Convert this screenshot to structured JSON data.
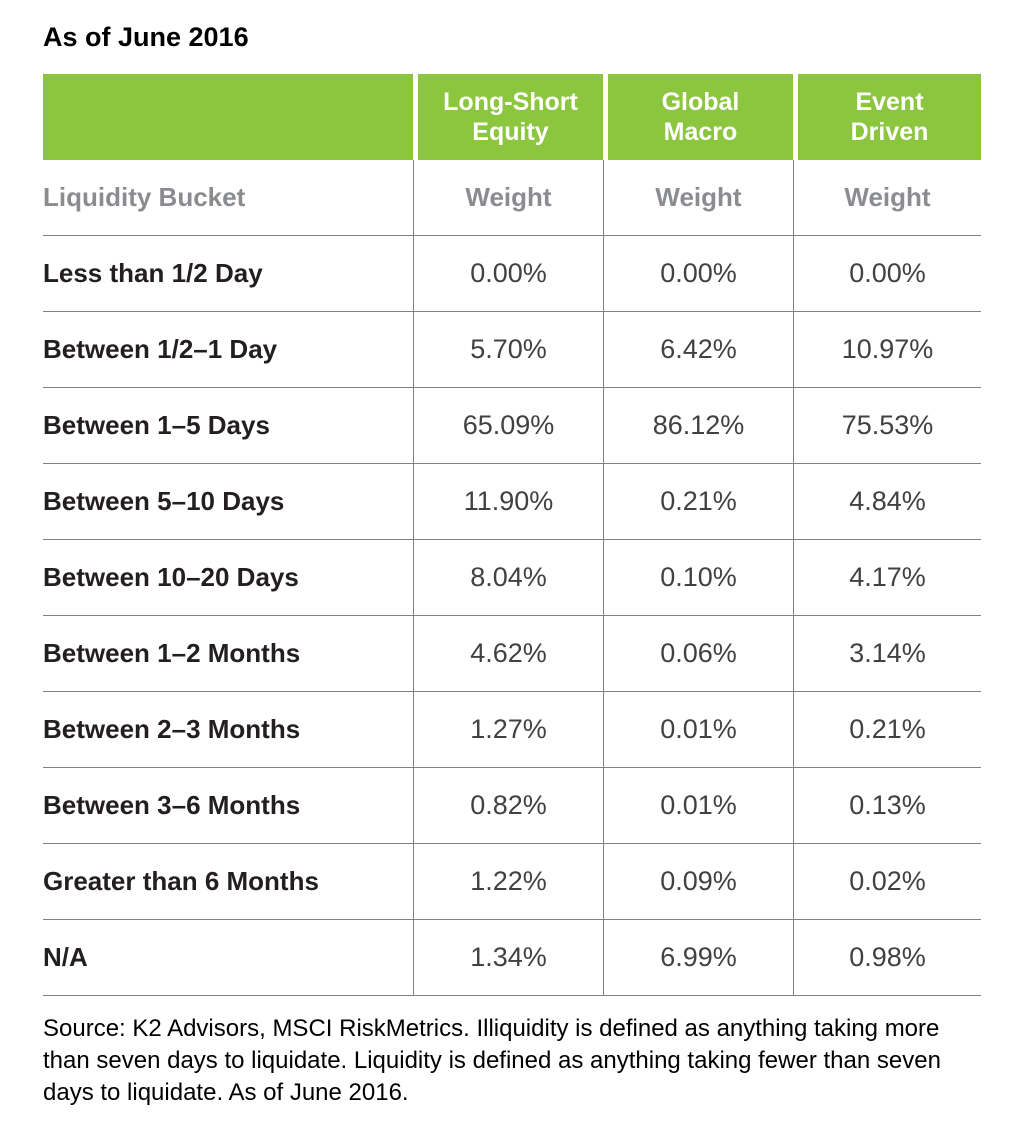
{
  "title": "As of June 2016",
  "table": {
    "bucket_header": "Liquidity Bucket",
    "columns": [
      {
        "line1": "Long-Short",
        "line2": "Equity",
        "weight": "Weight"
      },
      {
        "line1": "Global",
        "line2": "Macro",
        "weight": "Weight"
      },
      {
        "line1": "Event",
        "line2": "Driven",
        "weight": "Weight"
      }
    ],
    "rows": [
      {
        "bucket": "Less than 1/2 Day",
        "values": [
          "0.00%",
          "0.00%",
          "0.00%"
        ]
      },
      {
        "bucket": "Between 1/2–1 Day",
        "values": [
          "5.70%",
          "6.42%",
          "10.97%"
        ]
      },
      {
        "bucket": "Between 1–5 Days",
        "values": [
          "65.09%",
          "86.12%",
          "75.53%"
        ]
      },
      {
        "bucket": "Between 5–10 Days",
        "values": [
          "11.90%",
          "0.21%",
          "4.84%"
        ]
      },
      {
        "bucket": "Between 10–20 Days",
        "values": [
          "8.04%",
          "0.10%",
          "4.17%"
        ]
      },
      {
        "bucket": "Between 1–2 Months",
        "values": [
          "4.62%",
          "0.06%",
          "3.14%"
        ]
      },
      {
        "bucket": "Between 2–3 Months",
        "values": [
          "1.27%",
          "0.01%",
          "0.21%"
        ]
      },
      {
        "bucket": "Between 3–6 Months",
        "values": [
          "0.82%",
          "0.01%",
          "0.13%"
        ]
      },
      {
        "bucket": "Greater than 6 Months",
        "values": [
          "1.22%",
          "0.09%",
          "0.02%"
        ]
      },
      {
        "bucket": "N/A",
        "values": [
          "1.34%",
          "6.99%",
          "0.98%"
        ]
      }
    ]
  },
  "source": "Source: K2 Advisors, MSCI RiskMetrics. Illiquidity is defined as anything taking more than seven days to liquidate. Liquidity is defined as anything taking fewer than seven days to liquidate. As of June 2016.",
  "colors": {
    "header_green": "#8CC63F",
    "header_text": "#FFFFFF",
    "subheader_gray": "#8A8C8F",
    "value_gray": "#414042",
    "label_black": "#231F20",
    "rule_gray": "#808285"
  },
  "chart_data": {
    "type": "table",
    "title": "As of June 2016",
    "columns": [
      "Liquidity Bucket",
      "Long-Short Equity Weight (%)",
      "Global Macro Weight (%)",
      "Event Driven Weight (%)"
    ],
    "rows": [
      [
        "Less than 1/2 Day",
        0.0,
        0.0,
        0.0
      ],
      [
        "Between 1/2–1 Day",
        5.7,
        6.42,
        10.97
      ],
      [
        "Between 1–5 Days",
        65.09,
        86.12,
        75.53
      ],
      [
        "Between 5–10 Days",
        11.9,
        0.21,
        4.84
      ],
      [
        "Between 10–20 Days",
        8.04,
        0.1,
        4.17
      ],
      [
        "Between 1–2 Months",
        4.62,
        0.06,
        3.14
      ],
      [
        "Between 2–3 Months",
        1.27,
        0.01,
        0.21
      ],
      [
        "Between 3–6 Months",
        0.82,
        0.01,
        0.13
      ],
      [
        "Greater than 6 Months",
        1.22,
        0.09,
        0.02
      ],
      [
        "N/A",
        1.34,
        6.99,
        0.98
      ]
    ],
    "values_unit": "%",
    "source_note": "Source: K2 Advisors, MSCI RiskMetrics. Illiquidity is defined as anything taking more than seven days to liquidate. Liquidity is defined as anything taking fewer than seven days to liquidate. As of June 2016."
  }
}
